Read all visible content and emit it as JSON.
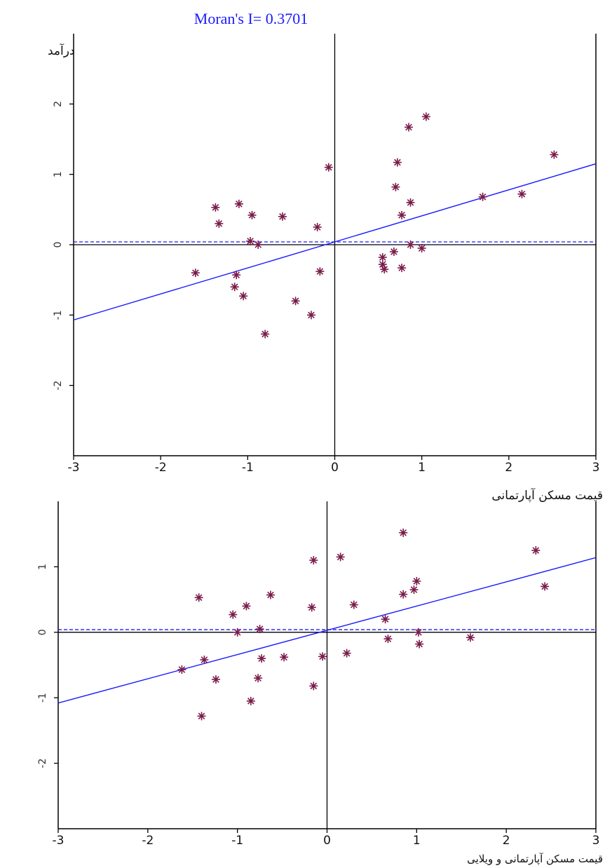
{
  "chart_data": [
    {
      "type": "scatter",
      "title": "Moran's I= 0.3701",
      "xlabel": "قیمت مسکن آپارتمانی",
      "ylabel": "درآمد",
      "xlim": [
        -3,
        3
      ],
      "ylim": [
        -3,
        3
      ],
      "xticks": [
        "-3",
        "-2",
        "-1",
        "0",
        "1",
        "2",
        "3"
      ],
      "yticks": [
        {
          "value": 2,
          "label": "2"
        },
        {
          "value": 1,
          "label": "1"
        },
        {
          "value": 0,
          "label": "0"
        },
        {
          "value": -1,
          "label": "-1"
        },
        {
          "value": -2,
          "label": "-2"
        }
      ],
      "marker": "asterisk",
      "marker_color": "#7a1a4a",
      "line_color": "#1a1aff",
      "regression": {
        "slope": 0.3701,
        "intercept": 0.04
      },
      "mean_line_y": 0.04,
      "points": [
        [
          -1.6,
          -0.4
        ],
        [
          -1.37,
          0.53
        ],
        [
          -1.33,
          0.3
        ],
        [
          -1.1,
          0.58
        ],
        [
          -1.13,
          -0.43
        ],
        [
          -1.15,
          -0.6
        ],
        [
          -1.05,
          -0.73
        ],
        [
          -0.95,
          0.42
        ],
        [
          -0.97,
          0.05
        ],
        [
          -0.88,
          0.0
        ],
        [
          -0.6,
          0.4
        ],
        [
          -0.8,
          -1.27
        ],
        [
          -0.45,
          -0.8
        ],
        [
          -0.2,
          0.25
        ],
        [
          -0.17,
          -0.38
        ],
        [
          -0.27,
          -1.0
        ],
        [
          -0.07,
          1.1
        ],
        [
          0.55,
          -0.18
        ],
        [
          0.55,
          -0.28
        ],
        [
          0.57,
          -0.35
        ],
        [
          0.68,
          -0.1
        ],
        [
          0.7,
          0.82
        ],
        [
          0.72,
          1.17
        ],
        [
          0.77,
          0.42
        ],
        [
          0.77,
          -0.33
        ],
        [
          0.85,
          1.67
        ],
        [
          0.87,
          0.6
        ],
        [
          0.87,
          0.0
        ],
        [
          1.0,
          -0.05
        ],
        [
          1.05,
          1.82
        ],
        [
          1.7,
          0.68
        ],
        [
          2.15,
          0.72
        ],
        [
          2.52,
          1.28
        ]
      ]
    },
    {
      "type": "scatter",
      "xlabel": "قیمت مسکن آپارتمانی و ویلایی",
      "xlim": [
        -3,
        3
      ],
      "ylim": [
        -3,
        2
      ],
      "xticks": [
        "-3",
        "-2",
        "-1",
        "0",
        "1",
        "2",
        "3"
      ],
      "yticks": [
        {
          "value": 1,
          "label": "1"
        },
        {
          "value": 0,
          "label": "0"
        },
        {
          "value": -1,
          "label": "-1"
        },
        {
          "value": -2,
          "label": "-2"
        }
      ],
      "marker": "asterisk",
      "marker_color": "#7a1a4a",
      "line_color": "#1a1aff",
      "regression": {
        "slope": 0.37,
        "intercept": 0.03
      },
      "mean_line_y": 0.04,
      "points": [
        [
          -1.62,
          -0.57
        ],
        [
          -1.37,
          -0.42
        ],
        [
          -1.24,
          -0.72
        ],
        [
          -1.4,
          -1.28
        ],
        [
          -1.43,
          0.53
        ],
        [
          -1.05,
          0.27
        ],
        [
          -1.0,
          0.0
        ],
        [
          -0.9,
          0.4
        ],
        [
          -0.85,
          -1.05
        ],
        [
          -0.77,
          -0.7
        ],
        [
          -0.73,
          -0.4
        ],
        [
          -0.75,
          0.05
        ],
        [
          -0.63,
          0.57
        ],
        [
          -0.48,
          -0.38
        ],
        [
          -0.17,
          0.38
        ],
        [
          -0.15,
          1.1
        ],
        [
          -0.15,
          -0.82
        ],
        [
          -0.05,
          -0.37
        ],
        [
          0.15,
          1.15
        ],
        [
          0.22,
          -0.32
        ],
        [
          0.3,
          0.42
        ],
        [
          0.65,
          0.2
        ],
        [
          0.68,
          -0.1
        ],
        [
          0.85,
          0.58
        ],
        [
          0.97,
          0.65
        ],
        [
          1.0,
          0.78
        ],
        [
          1.02,
          0.0
        ],
        [
          1.03,
          -0.18
        ],
        [
          1.6,
          -0.08
        ],
        [
          2.33,
          1.25
        ],
        [
          2.43,
          0.7
        ],
        [
          0.85,
          1.52
        ]
      ]
    }
  ]
}
